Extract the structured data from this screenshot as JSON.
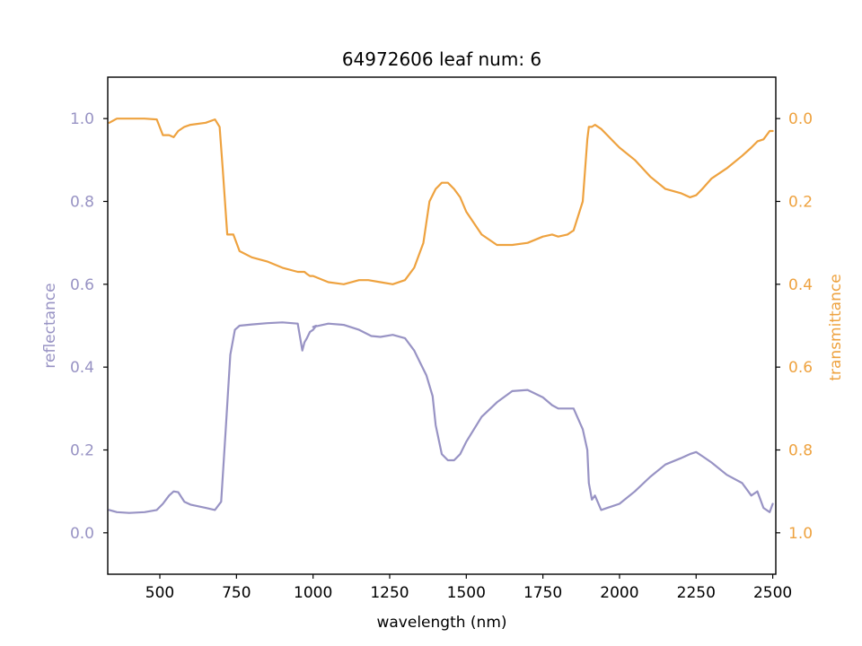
{
  "chart_data": {
    "type": "line",
    "title": "64972606 leaf num: 6",
    "xlabel": "wavelength (nm)",
    "xlim": [
      330,
      2510
    ],
    "xticks": [
      500,
      750,
      1000,
      1250,
      1500,
      1750,
      2000,
      2250,
      2500
    ],
    "left_axis": {
      "label": "reflectance",
      "ylim": [
        -0.1,
        1.1
      ],
      "ticks": [
        0.0,
        0.2,
        0.4,
        0.6,
        0.8,
        1.0
      ],
      "tick_labels": [
        "0.0",
        "0.2",
        "0.4",
        "0.6",
        "0.8",
        "1.0"
      ],
      "color": "#9893c4"
    },
    "right_axis": {
      "label": "transmittance",
      "inverted": true,
      "ylim": [
        1.1,
        -0.1
      ],
      "ticks": [
        0.0,
        0.2,
        0.4,
        0.6,
        0.8,
        1.0
      ],
      "tick_labels": [
        "0.0",
        "0.2",
        "0.4",
        "0.6",
        "0.8",
        "1.0"
      ],
      "color": "#eea23f"
    },
    "series": [
      {
        "axis": "left",
        "color": "#9893c4",
        "x": [
          335,
          360,
          400,
          450,
          490,
          510,
          530,
          545,
          560,
          580,
          600,
          650,
          680,
          700,
          715,
          730,
          745,
          760,
          800,
          850,
          900,
          950,
          965,
          972,
          980,
          990,
          1000,
          1010,
          1000,
          1050,
          1100,
          1150,
          1190,
          1220,
          1260,
          1300,
          1330,
          1350,
          1370,
          1390,
          1400,
          1420,
          1440,
          1460,
          1480,
          1500,
          1550,
          1600,
          1650,
          1700,
          1750,
          1780,
          1800,
          1830,
          1850,
          1880,
          1895,
          1900,
          1910,
          1920,
          1940,
          1960,
          1980,
          2000,
          2050,
          2100,
          2150,
          2200,
          2230,
          2250,
          2270,
          2300,
          2350,
          2400,
          2430,
          2450,
          2470,
          2490,
          2500
        ],
        "values": [
          0.055,
          0.05,
          0.048,
          0.05,
          0.055,
          0.07,
          0.09,
          0.1,
          0.098,
          0.075,
          0.068,
          0.06,
          0.055,
          0.075,
          0.25,
          0.43,
          0.49,
          0.5,
          0.503,
          0.506,
          0.508,
          0.505,
          0.44,
          0.46,
          0.47,
          0.485,
          0.49,
          0.5,
          0.497,
          0.505,
          0.502,
          0.49,
          0.475,
          0.473,
          0.478,
          0.47,
          0.44,
          0.41,
          0.38,
          0.33,
          0.26,
          0.19,
          0.175,
          0.175,
          0.19,
          0.22,
          0.28,
          0.315,
          0.342,
          0.345,
          0.327,
          0.308,
          0.3,
          0.3,
          0.3,
          0.25,
          0.2,
          0.12,
          0.08,
          0.09,
          0.055,
          0.06,
          0.065,
          0.07,
          0.1,
          0.135,
          0.165,
          0.18,
          0.19,
          0.195,
          0.185,
          0.17,
          0.14,
          0.12,
          0.09,
          0.1,
          0.06,
          0.05,
          0.07
        ]
      },
      {
        "axis": "right",
        "color": "#eea23f",
        "x": [
          335,
          360,
          400,
          450,
          490,
          510,
          530,
          545,
          560,
          580,
          600,
          650,
          680,
          695,
          705,
          720,
          740,
          760,
          800,
          850,
          900,
          950,
          965,
          972,
          980,
          990,
          1000,
          1050,
          1100,
          1150,
          1180,
          1220,
          1260,
          1300,
          1330,
          1360,
          1380,
          1400,
          1420,
          1440,
          1460,
          1480,
          1500,
          1550,
          1600,
          1650,
          1700,
          1750,
          1780,
          1800,
          1830,
          1850,
          1880,
          1895,
          1900,
          1910,
          1920,
          1940,
          1960,
          1980,
          2000,
          2050,
          2100,
          2150,
          2200,
          2230,
          2250,
          2270,
          2300,
          2350,
          2400,
          2430,
          2450,
          2470,
          2490,
          2500
        ],
        "values": [
          0.01,
          0.0,
          0.0,
          0.0,
          0.002,
          0.04,
          0.04,
          0.045,
          0.03,
          0.02,
          0.015,
          0.01,
          0.002,
          0.02,
          0.12,
          0.28,
          0.28,
          0.32,
          0.335,
          0.345,
          0.36,
          0.37,
          0.37,
          0.37,
          0.375,
          0.38,
          0.38,
          0.395,
          0.4,
          0.39,
          0.39,
          0.395,
          0.4,
          0.39,
          0.36,
          0.3,
          0.2,
          0.17,
          0.155,
          0.155,
          0.17,
          0.19,
          0.225,
          0.28,
          0.305,
          0.305,
          0.3,
          0.285,
          0.28,
          0.285,
          0.28,
          0.27,
          0.2,
          0.05,
          0.02,
          0.02,
          0.015,
          0.025,
          0.04,
          0.055,
          0.07,
          0.1,
          0.14,
          0.17,
          0.18,
          0.19,
          0.185,
          0.17,
          0.145,
          0.12,
          0.09,
          0.07,
          0.055,
          0.05,
          0.03,
          0.03
        ]
      }
    ]
  }
}
